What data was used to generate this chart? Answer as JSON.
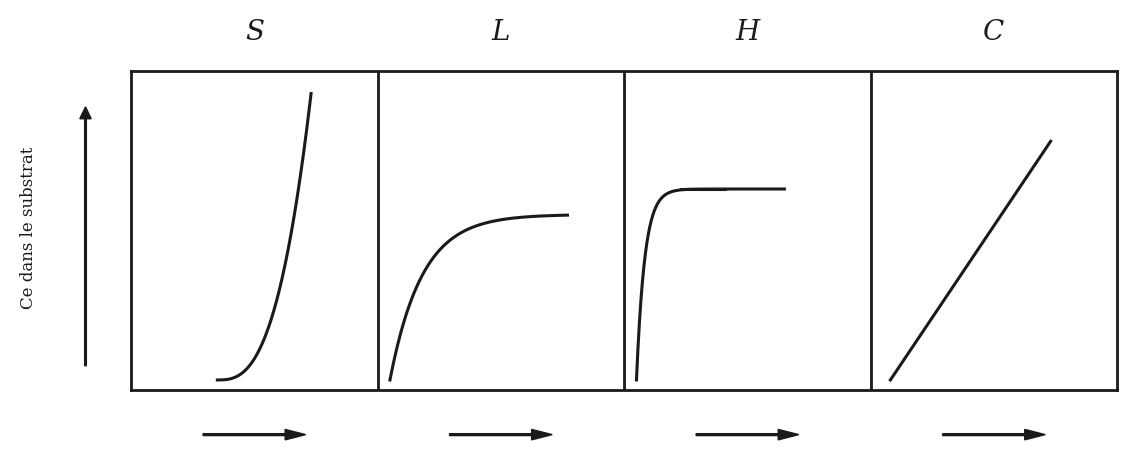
{
  "panel_labels": [
    "S",
    "L",
    "H",
    "C"
  ],
  "ylabel": "Ce dans le substrat",
  "background_color": "#ffffff",
  "line_color": "#1a1a1a",
  "label_fontsize": 20,
  "ylabel_fontsize": 12,
  "arrow_color": "#1a1a1a",
  "panel_border_color": "#1a1a1a",
  "spine_linewidth": 2.0,
  "curve_linewidth": 2.2
}
